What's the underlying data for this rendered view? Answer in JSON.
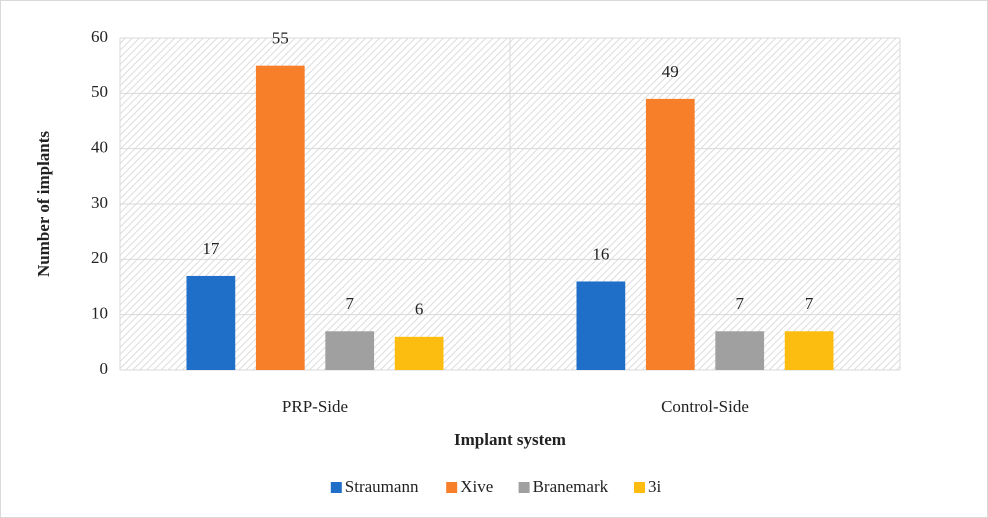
{
  "chart_data": {
    "type": "bar",
    "x_label": "Implant system",
    "y_label": "Number of implants",
    "categories": [
      "PRP-Side",
      "Control-Side"
    ],
    "series": [
      {
        "name": "Straumann",
        "color": "#1f6fc9",
        "values": [
          17,
          16
        ]
      },
      {
        "name": "Xive",
        "color": "#f77f2a",
        "values": [
          55,
          49
        ]
      },
      {
        "name": "Branemark",
        "color": "#a0a0a0",
        "values": [
          7,
          7
        ]
      },
      {
        "name": "3i",
        "color": "#fdbd10",
        "values": [
          6,
          7
        ]
      }
    ],
    "ylim": [
      0,
      60
    ],
    "yticks": [
      0,
      10,
      20,
      30,
      40,
      50,
      60
    ],
    "grid": true,
    "legend": "bottom"
  }
}
